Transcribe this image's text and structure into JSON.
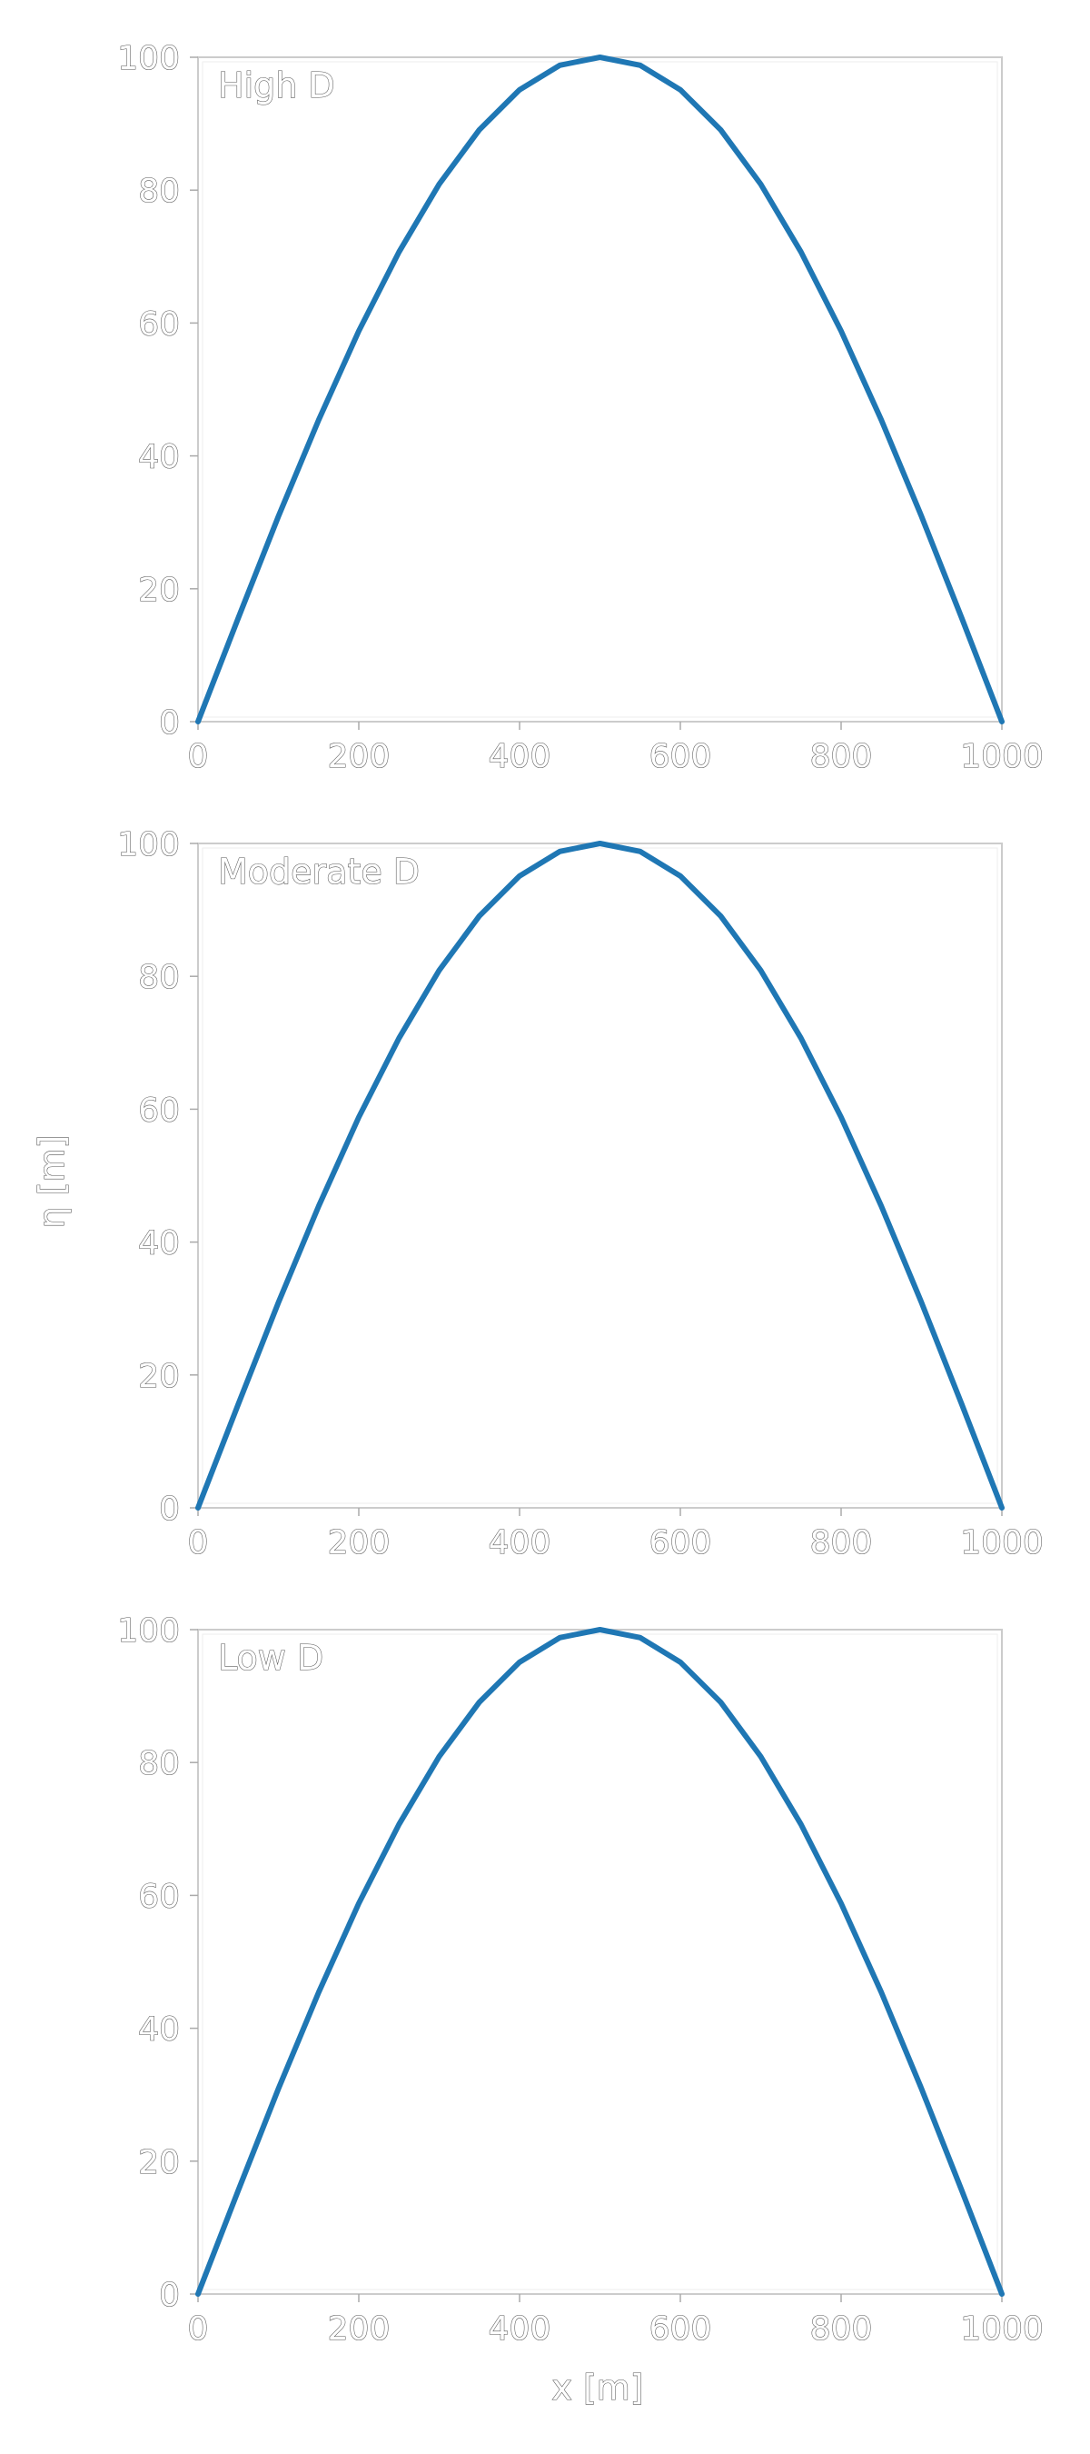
{
  "chart_data": [
    {
      "type": "line",
      "panel_label": "High D",
      "xlim": [
        0,
        1000
      ],
      "ylim": [
        0,
        100
      ],
      "xticks": [
        "0",
        "200",
        "400",
        "600",
        "800",
        "1000"
      ],
      "yticks": [
        "0",
        "20",
        "40",
        "60",
        "80",
        "100"
      ],
      "series": [
        {
          "color": "#1f77b4",
          "x": [
            0,
            50,
            100,
            150,
            200,
            250,
            300,
            350,
            400,
            450,
            500,
            550,
            600,
            650,
            700,
            750,
            800,
            850,
            900,
            950,
            1000
          ],
          "y": [
            0,
            15.6,
            30.9,
            45.4,
            58.8,
            70.7,
            80.9,
            89.1,
            95.1,
            98.8,
            100,
            98.8,
            95.1,
            89.1,
            80.9,
            70.7,
            58.8,
            45.4,
            30.9,
            15.6,
            0
          ]
        }
      ]
    },
    {
      "type": "line",
      "panel_label": "Moderate D",
      "xlim": [
        0,
        1000
      ],
      "ylim": [
        0,
        100
      ],
      "xticks": [
        "0",
        "200",
        "400",
        "600",
        "800",
        "1000"
      ],
      "yticks": [
        "0",
        "20",
        "40",
        "60",
        "80",
        "100"
      ],
      "series": [
        {
          "color": "#1f77b4",
          "x": [
            0,
            50,
            100,
            150,
            200,
            250,
            300,
            350,
            400,
            450,
            500,
            550,
            600,
            650,
            700,
            750,
            800,
            850,
            900,
            950,
            1000
          ],
          "y": [
            0,
            15.6,
            30.9,
            45.4,
            58.8,
            70.7,
            80.9,
            89.1,
            95.1,
            98.8,
            100,
            98.8,
            95.1,
            89.1,
            80.9,
            70.7,
            58.8,
            45.4,
            30.9,
            15.6,
            0
          ]
        }
      ]
    },
    {
      "type": "line",
      "panel_label": "Low D",
      "xlim": [
        0,
        1000
      ],
      "ylim": [
        0,
        100
      ],
      "xticks": [
        "0",
        "200",
        "400",
        "600",
        "800",
        "1000"
      ],
      "yticks": [
        "0",
        "20",
        "40",
        "60",
        "80",
        "100"
      ],
      "series": [
        {
          "color": "#1f77b4",
          "x": [
            0,
            50,
            100,
            150,
            200,
            250,
            300,
            350,
            400,
            450,
            500,
            550,
            600,
            650,
            700,
            750,
            800,
            850,
            900,
            950,
            1000
          ],
          "y": [
            0,
            15.6,
            30.9,
            45.4,
            58.8,
            70.7,
            80.9,
            89.1,
            95.1,
            98.8,
            100,
            98.8,
            95.1,
            89.1,
            80.9,
            70.7,
            58.8,
            45.4,
            30.9,
            15.6,
            0
          ]
        }
      ]
    }
  ],
  "ylabel": "η [m]",
  "xlabel": "x [m]"
}
